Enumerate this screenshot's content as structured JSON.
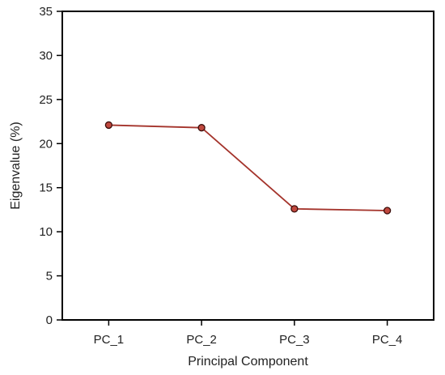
{
  "chart_data": {
    "type": "line",
    "title": "",
    "xlabel": "Principal Component",
    "ylabel": "Eigenvalue (%)",
    "categories": [
      "PC_1",
      "PC_2",
      "PC_3",
      "PC_4"
    ],
    "series": [
      {
        "values": [
          22.1,
          21.8,
          12.6,
          12.4
        ]
      }
    ],
    "ylim": [
      0,
      35
    ],
    "yticks": [
      0,
      5,
      10,
      15,
      20,
      25,
      30,
      35
    ],
    "grid": false,
    "legend": "none",
    "colors": {
      "line": "#a4332b",
      "marker_fill": "#c0483e",
      "marker_edge": "#3a0d0a",
      "axis": "#000000"
    }
  }
}
